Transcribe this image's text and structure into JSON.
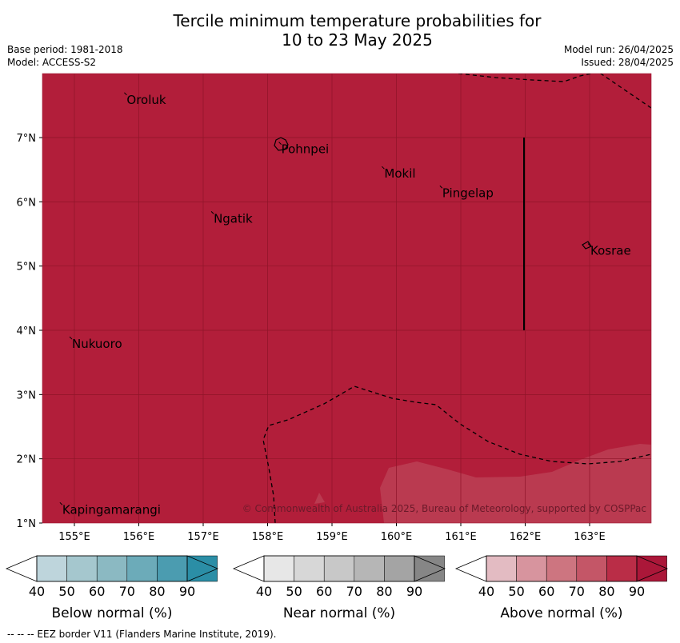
{
  "title_line1": "Tercile minimum temperature probabilities for",
  "title_line2": "10 to 23 May 2025",
  "base_period": "Base period: 1981-2018",
  "model": "Model: ACCESS-S2",
  "model_run": "Model run: 26/04/2025",
  "issued": "Issued: 28/04/2025",
  "copyright": "© Commonwealth of Australia 2025, Bureau of Meteorology, supported by COSPPac",
  "footer": "--  --  -- EEZ border V11 (Flanders Marine Institute, 2019).",
  "map": {
    "lon_ticks": [
      "155°E",
      "156°E",
      "157°E",
      "158°E",
      "159°E",
      "160°E",
      "161°E",
      "162°E",
      "163°E"
    ],
    "lat_ticks": [
      "7°N",
      "6°N",
      "5°N",
      "4°N",
      "3°N",
      "2°N",
      "1°N"
    ],
    "fill_color": "#b21e3a",
    "places": [
      {
        "name": "Oroluk",
        "lon": 155.8,
        "lat": 7.65
      },
      {
        "name": "Pohnpei",
        "lon": 158.2,
        "lat": 6.88
      },
      {
        "name": "Mokil",
        "lon": 159.8,
        "lat": 6.5
      },
      {
        "name": "Pingelap",
        "lon": 160.7,
        "lat": 6.2
      },
      {
        "name": "Ngatik",
        "lon": 157.15,
        "lat": 5.8
      },
      {
        "name": "Kosrae",
        "lon": 163.0,
        "lat": 5.3
      },
      {
        "name": "Nukuoro",
        "lon": 154.95,
        "lat": 3.85
      },
      {
        "name": "Kapingamarangi",
        "lon": 154.8,
        "lat": 1.27
      }
    ]
  },
  "colorbars": [
    {
      "label": "Below normal (%)",
      "ticks": [
        "40",
        "50",
        "60",
        "70",
        "80",
        "90"
      ],
      "colors": [
        "#bed5dc",
        "#a5c7ce",
        "#8bb9c2",
        "#6cabb9",
        "#4b9cb0",
        "#2b8ea6"
      ],
      "arrow": "#2b8ea6"
    },
    {
      "label": "Near normal (%)",
      "ticks": [
        "40",
        "50",
        "60",
        "70",
        "80",
        "90"
      ],
      "colors": [
        "#e7e7e7",
        "#d7d7d7",
        "#c8c8c8",
        "#b6b6b6",
        "#a4a4a4",
        "#868686"
      ],
      "arrow": "#868686"
    },
    {
      "label": "Above normal (%)",
      "ticks": [
        "40",
        "50",
        "60",
        "70",
        "80",
        "90"
      ],
      "colors": [
        "#e3bbc2",
        "#d7949e",
        "#cd7580",
        "#c45667",
        "#ba2d47",
        "#ab1739"
      ],
      "arrow": "#ab1739"
    }
  ]
}
